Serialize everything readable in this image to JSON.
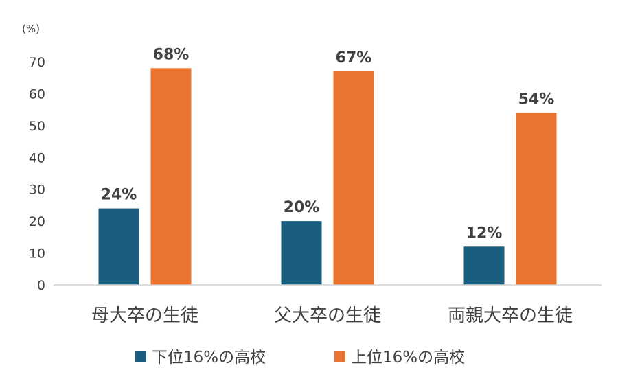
{
  "chart_data": {
    "type": "bar",
    "unit_label": "(%)",
    "categories": [
      "母大卒の生徒",
      "父大卒の生徒",
      "両親大卒の生徒"
    ],
    "series": [
      {
        "name": "下位16%の高校",
        "color": "#1a5e7f",
        "values": [
          24,
          20,
          12
        ],
        "labels": [
          "24%",
          "20%",
          "12%"
        ]
      },
      {
        "name": "上位16%の高校",
        "color": "#e8742f",
        "values": [
          68,
          67,
          54
        ],
        "labels": [
          "68%",
          "67%",
          "54%"
        ]
      }
    ],
    "ylim": [
      0,
      70
    ],
    "yticks": [
      "0",
      "10",
      "20",
      "30",
      "40",
      "50",
      "60",
      "70"
    ],
    "grid": false,
    "legend_position": "bottom"
  }
}
